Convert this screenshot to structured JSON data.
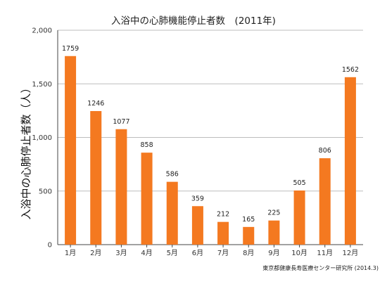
{
  "chart_data": {
    "type": "bar",
    "title": "入浴中の心肺機能停止者数　(2011年)",
    "ylabel": "入浴中の心肺停止者数（人）",
    "xlabel": "",
    "categories": [
      "1月",
      "2月",
      "3月",
      "4月",
      "5月",
      "6月",
      "7月",
      "8月",
      "9月",
      "10月",
      "11月",
      "12月"
    ],
    "values": [
      1759,
      1246,
      1077,
      858,
      586,
      359,
      212,
      165,
      225,
      505,
      806,
      1562
    ],
    "data_labels": [
      "1759",
      "1246",
      "1077",
      "858",
      "586",
      "359",
      "212",
      "165",
      "225",
      "505",
      "806",
      "1562"
    ],
    "ylim": [
      0,
      2000
    ],
    "yticks": [
      0,
      500,
      1000,
      1500,
      2000
    ],
    "ytick_labels": [
      "0",
      "500",
      "1,000",
      "1,500",
      "2,000"
    ],
    "grid": true,
    "legend": "none",
    "bar_color": "#F47920",
    "source_note": "東京都健康長寿医療センター研究所 (2014.3)"
  }
}
